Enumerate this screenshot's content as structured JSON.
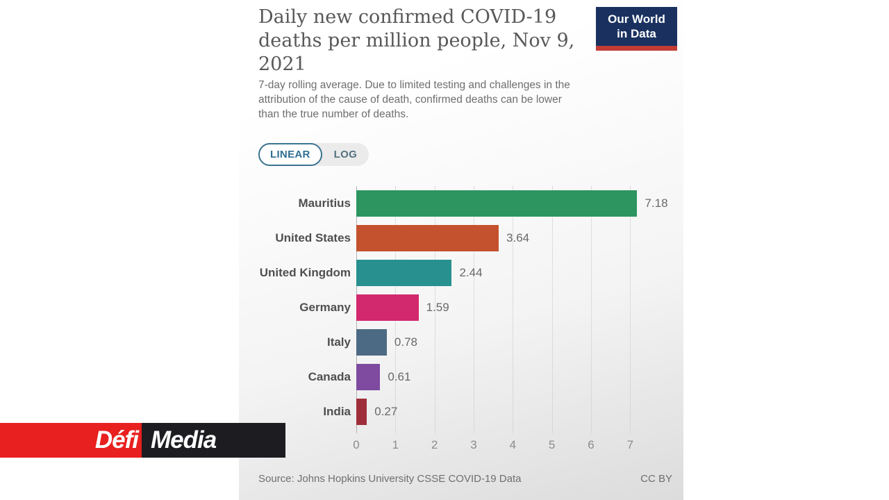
{
  "watermark": {
    "defi_label": "Défi",
    "media_label": "Media",
    "red": "#e8201f",
    "black": "#1d1c21"
  },
  "card": {
    "title_lines": [
      "Daily new confirmed COVID-19",
      "deaths per million people, Nov 9,",
      "2021"
    ],
    "subtitle_lines": [
      "7-day rolling average. Due to limited testing and challenges in the",
      "attribution of the cause of death, confirmed deaths can be lower",
      "than the true number of deaths."
    ],
    "logo": {
      "line1": "Our World",
      "line2": "in Data",
      "bg": "#1a3160",
      "stripe": "#c23c36"
    },
    "toggle": {
      "linear_label": "LINEAR",
      "log_label": "LOG",
      "active": "LINEAR",
      "accent": "#3b7390"
    },
    "footer": {
      "source": "Source: Johns Hopkins University CSSE COVID-19 Data",
      "license": "CC BY"
    }
  },
  "chart_data": {
    "type": "bar",
    "orientation": "horizontal",
    "title": "Daily new confirmed COVID-19 deaths per million people, Nov 9, 2021",
    "subtitle": "7-day rolling average. Due to limited testing and challenges in the attribution of the cause of death, confirmed deaths can be lower than the true number of deaths.",
    "categories": [
      "Mauritius",
      "United States",
      "United Kingdom",
      "Germany",
      "Italy",
      "Canada",
      "India"
    ],
    "values": [
      7.18,
      3.64,
      2.44,
      1.59,
      0.78,
      0.61,
      0.27
    ],
    "value_labels": [
      "7.18",
      "3.64",
      "2.44",
      "1.59",
      "0.78",
      "0.61",
      "0.27"
    ],
    "bar_colors": [
      "#2c9560",
      "#c4522e",
      "#28918f",
      "#d2286e",
      "#4d6a84",
      "#7e4ba0",
      "#9e2f3a"
    ],
    "xticks": [
      0,
      1,
      2,
      3,
      4,
      5,
      6,
      7
    ],
    "xlim": [
      0,
      7.9
    ],
    "xmax_display": 7.9,
    "grid": true,
    "legend": false,
    "xlabel": "",
    "ylabel": "",
    "source": "Source: Johns Hopkins University CSSE COVID-19 Data",
    "license": "CC BY"
  }
}
